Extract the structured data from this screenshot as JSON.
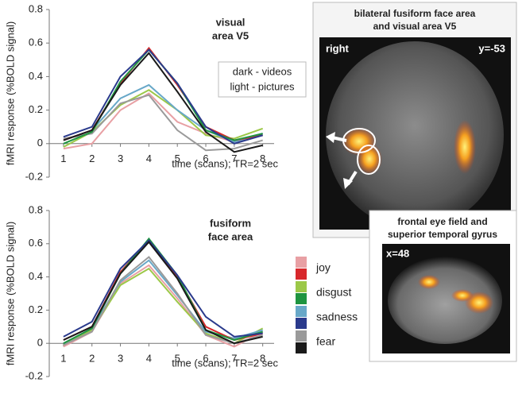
{
  "chart_data": [
    {
      "type": "line",
      "title": [
        "visual",
        "area V5"
      ],
      "xlabel": "time (scans); TR=2 sec",
      "ylabel": "fMRI response (%BOLD signal)",
      "annotations": [
        "dark - videos",
        "light - pictures"
      ],
      "x": [
        1,
        2,
        3,
        4,
        5,
        6,
        7,
        8
      ],
      "xlim": [
        0.5,
        8.4
      ],
      "xticks": [
        1,
        2,
        3,
        4,
        5,
        6,
        7,
        8
      ],
      "ylim": [
        -0.2,
        0.8
      ],
      "yticks": [
        -0.2,
        0,
        0.2,
        0.4,
        0.6,
        0.8
      ],
      "series": [
        {
          "light": [
            -0.03,
            0.0,
            0.2,
            0.3,
            0.13,
            0.06,
            0.01,
            0.05
          ],
          "dark": [
            0.02,
            0.08,
            0.36,
            0.57,
            0.35,
            0.1,
            0.02,
            0.05
          ]
        },
        {
          "light": [
            -0.02,
            0.07,
            0.23,
            0.32,
            0.2,
            0.05,
            0.03,
            0.09
          ],
          "dark": [
            0.0,
            0.07,
            0.37,
            0.56,
            0.36,
            0.08,
            0.02,
            0.06
          ]
        },
        {
          "light": [
            0.02,
            0.08,
            0.27,
            0.35,
            0.2,
            0.08,
            0.01,
            0.06
          ],
          "dark": [
            0.04,
            0.1,
            0.4,
            0.56,
            0.36,
            0.1,
            0.0,
            0.05
          ]
        },
        {
          "light": [
            0.03,
            0.06,
            0.24,
            0.29,
            0.08,
            -0.04,
            -0.03,
            0.02
          ],
          "dark": [
            0.02,
            0.08,
            0.35,
            0.54,
            0.31,
            0.07,
            -0.05,
            -0.01
          ]
        }
      ]
    },
    {
      "type": "line",
      "title": [
        "fusiform",
        "face area"
      ],
      "xlabel": "time (scans); TR=2 sec",
      "ylabel": "fMRI response (%BOLD signal)",
      "x": [
        1,
        2,
        3,
        4,
        5,
        6,
        7,
        8
      ],
      "xlim": [
        0.5,
        8.4
      ],
      "xticks": [
        1,
        2,
        3,
        4,
        5,
        6,
        7,
        8
      ],
      "ylim": [
        -0.2,
        0.8
      ],
      "yticks": [
        -0.2,
        0,
        0.2,
        0.4,
        0.6,
        0.8
      ],
      "series": [
        {
          "light": [
            -0.02,
            0.07,
            0.36,
            0.47,
            0.27,
            0.05,
            -0.02,
            0.07
          ],
          "dark": [
            0.02,
            0.1,
            0.43,
            0.62,
            0.4,
            0.1,
            0.02,
            0.06
          ]
        },
        {
          "light": [
            -0.01,
            0.08,
            0.35,
            0.45,
            0.25,
            0.06,
            0.0,
            0.09
          ],
          "dark": [
            0.0,
            0.09,
            0.42,
            0.63,
            0.41,
            0.08,
            0.02,
            0.07
          ]
        },
        {
          "light": [
            0.0,
            0.09,
            0.37,
            0.5,
            0.29,
            0.07,
            0.03,
            0.08
          ],
          "dark": [
            0.04,
            0.13,
            0.45,
            0.62,
            0.41,
            0.16,
            0.04,
            0.06
          ]
        },
        {
          "light": [
            -0.01,
            0.07,
            0.38,
            0.52,
            0.3,
            0.05,
            0.0,
            0.05
          ],
          "dark": [
            0.02,
            0.1,
            0.42,
            0.61,
            0.39,
            0.08,
            0.0,
            0.04
          ]
        }
      ]
    }
  ],
  "legend": [
    {
      "name": "joy",
      "colors": {
        "light": "#e8a0a4",
        "dark": "#d8282c"
      }
    },
    {
      "name": "disgust",
      "colors": {
        "light": "#9cc848",
        "dark": "#1e9440"
      }
    },
    {
      "name": "sadness",
      "colors": {
        "light": "#68a8c8",
        "dark": "#2a3a8c"
      }
    },
    {
      "name": "fear",
      "colors": {
        "light": "#9a9a9a",
        "dark": "#1a1a1a"
      }
    }
  ],
  "images": [
    {
      "title": [
        "bilateral fusiform face area",
        "and visual area V5"
      ],
      "labels": [
        "right",
        "y=-53"
      ]
    },
    {
      "title": [
        "frontal eye field and",
        "superior temporal gyrus"
      ],
      "labels": [
        "x=48"
      ]
    }
  ]
}
